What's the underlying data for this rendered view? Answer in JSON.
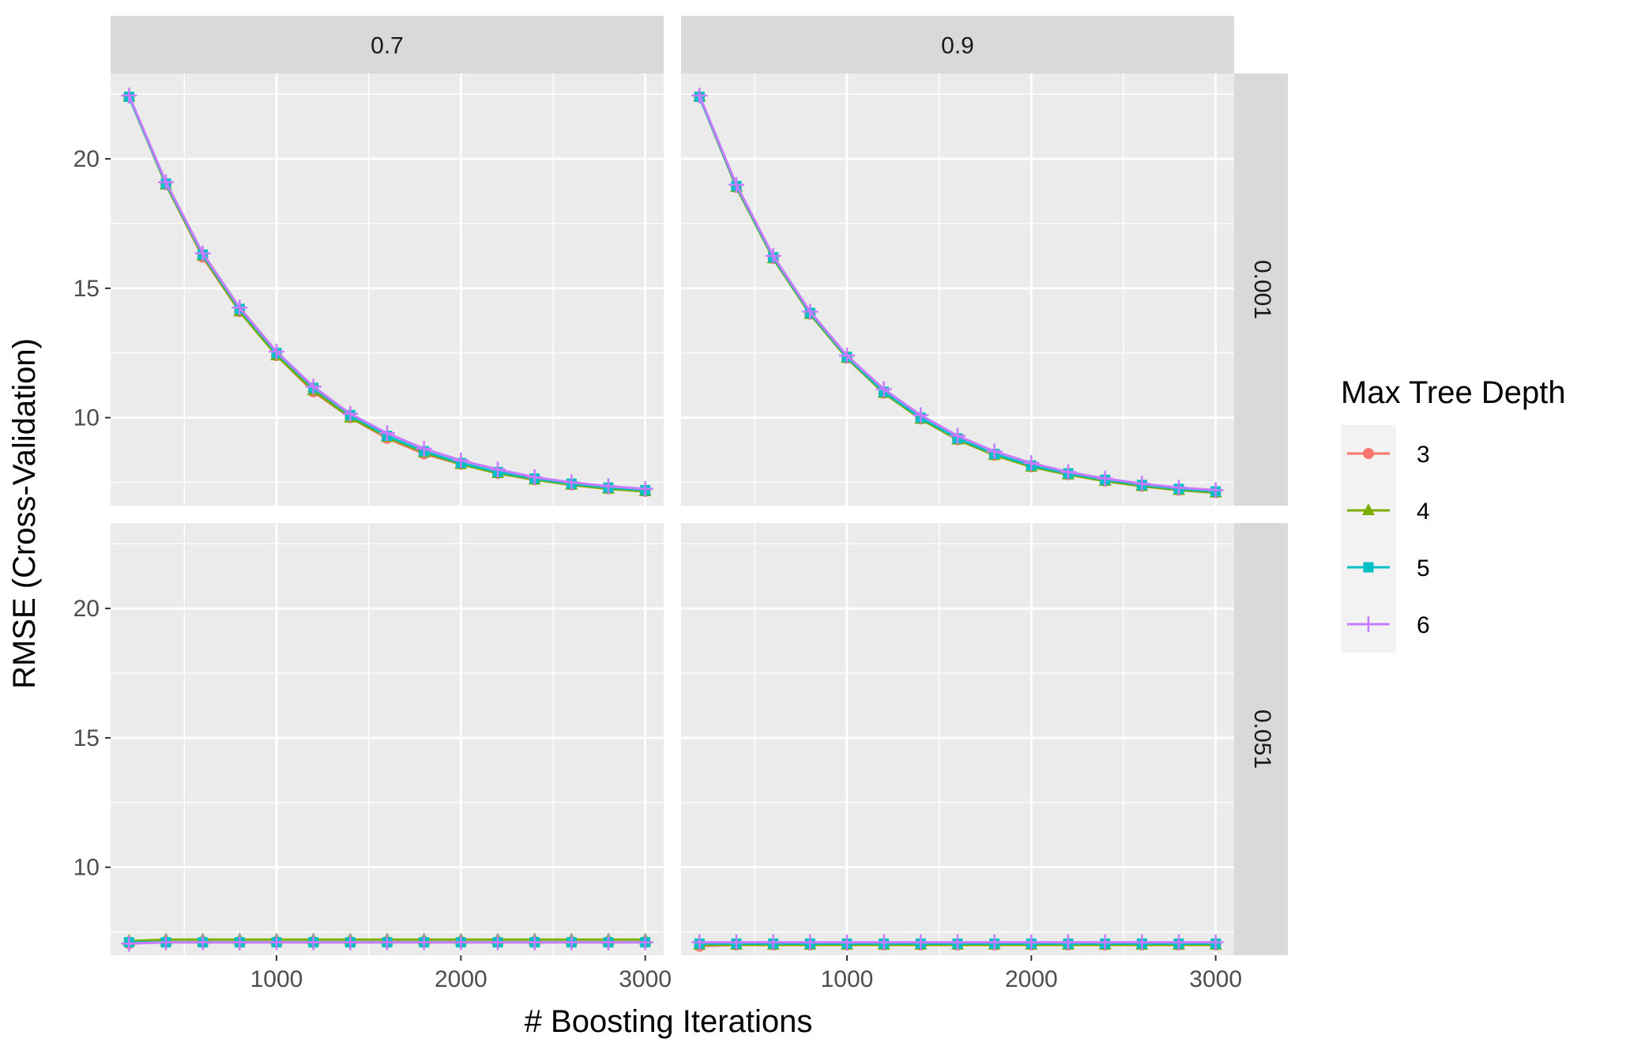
{
  "chart_data": {
    "type": "line",
    "xlabel": "# Boosting Iterations",
    "ylabel": "RMSE (Cross-Validation)",
    "xlim": [
      100,
      3100
    ],
    "ylim": [
      6.6,
      23.3
    ],
    "x_ticks": [
      1000,
      2000,
      3000
    ],
    "y_ticks": [
      10,
      15,
      20
    ],
    "grid": true,
    "legend": {
      "title": "Max Tree Depth",
      "placement": "right",
      "entries": [
        {
          "label": "3",
          "color": "#F8766D",
          "shape": "circle"
        },
        {
          "label": "4",
          "color": "#7CAE00",
          "shape": "triangle"
        },
        {
          "label": "5",
          "color": "#00BFC4",
          "shape": "square"
        },
        {
          "label": "6",
          "color": "#C77CFF",
          "shape": "plus"
        }
      ]
    },
    "facet_columns": [
      "0.7",
      "0.9"
    ],
    "facet_rows": [
      "0.001",
      "0.051"
    ],
    "x": [
      200,
      400,
      600,
      800,
      1000,
      1200,
      1400,
      1600,
      1800,
      2000,
      2200,
      2400,
      2600,
      2800,
      3000
    ],
    "panels": [
      {
        "column": "0.7",
        "row": "0.001",
        "series": [
          {
            "name": "3",
            "values": [
              22.4,
              19.0,
              16.2,
              14.1,
              12.4,
              11.0,
              10.0,
              9.2,
              8.6,
              8.2,
              7.85,
              7.6,
              7.4,
              7.25,
              7.15
            ]
          },
          {
            "name": "4",
            "values": [
              22.4,
              19.0,
              16.25,
              14.1,
              12.4,
              11.05,
              10.0,
              9.25,
              8.65,
              8.2,
              7.85,
              7.6,
              7.4,
              7.25,
              7.15
            ]
          },
          {
            "name": "5",
            "values": [
              22.4,
              19.05,
              16.3,
              14.2,
              12.5,
              11.15,
              10.1,
              9.3,
              8.7,
              8.25,
              7.9,
              7.65,
              7.45,
              7.3,
              7.2
            ]
          },
          {
            "name": "6",
            "values": [
              22.45,
              19.1,
              16.35,
              14.25,
              12.55,
              11.2,
              10.15,
              9.4,
              8.8,
              8.35,
              8.0,
              7.7,
              7.5,
              7.35,
              7.25
            ]
          }
        ]
      },
      {
        "column": "0.9",
        "row": "0.001",
        "series": [
          {
            "name": "3",
            "values": [
              22.4,
              18.9,
              16.15,
              14.0,
              12.3,
              10.95,
              9.95,
              9.15,
              8.55,
              8.1,
              7.8,
              7.55,
              7.35,
              7.2,
              7.1
            ]
          },
          {
            "name": "4",
            "values": [
              22.4,
              18.9,
              16.15,
              14.0,
              12.3,
              10.95,
              9.95,
              9.15,
              8.55,
              8.1,
              7.8,
              7.55,
              7.35,
              7.2,
              7.1
            ]
          },
          {
            "name": "5",
            "values": [
              22.4,
              18.95,
              16.2,
              14.05,
              12.35,
              11.0,
              10.0,
              9.2,
              8.6,
              8.15,
              7.85,
              7.6,
              7.4,
              7.25,
              7.15
            ]
          },
          {
            "name": "6",
            "values": [
              22.45,
              19.0,
              16.25,
              14.1,
              12.4,
              11.1,
              10.1,
              9.3,
              8.7,
              8.25,
              7.9,
              7.65,
              7.45,
              7.3,
              7.2
            ]
          }
        ]
      },
      {
        "column": "0.7",
        "row": "0.051",
        "series": [
          {
            "name": "3",
            "values": [
              7.05,
              7.1,
              7.1,
              7.1,
              7.1,
              7.1,
              7.1,
              7.1,
              7.1,
              7.1,
              7.1,
              7.1,
              7.1,
              7.1,
              7.1
            ]
          },
          {
            "name": "4",
            "values": [
              7.15,
              7.2,
              7.2,
              7.2,
              7.2,
              7.2,
              7.2,
              7.2,
              7.2,
              7.2,
              7.2,
              7.2,
              7.2,
              7.2,
              7.2
            ]
          },
          {
            "name": "5",
            "values": [
              7.1,
              7.1,
              7.1,
              7.1,
              7.1,
              7.1,
              7.1,
              7.1,
              7.1,
              7.1,
              7.1,
              7.1,
              7.1,
              7.1,
              7.1
            ]
          },
          {
            "name": "6",
            "values": [
              7.05,
              7.1,
              7.1,
              7.1,
              7.1,
              7.1,
              7.1,
              7.1,
              7.1,
              7.1,
              7.1,
              7.1,
              7.1,
              7.1,
              7.1
            ]
          }
        ]
      },
      {
        "column": "0.9",
        "row": "0.051",
        "series": [
          {
            "name": "3",
            "values": [
              6.95,
              7.0,
              7.0,
              7.0,
              7.0,
              7.0,
              7.0,
              7.0,
              7.0,
              7.0,
              7.0,
              7.0,
              7.0,
              7.0,
              7.0
            ]
          },
          {
            "name": "4",
            "values": [
              7.0,
              7.0,
              7.0,
              7.0,
              7.0,
              7.0,
              7.0,
              7.0,
              7.0,
              7.0,
              7.0,
              7.0,
              7.0,
              7.0,
              7.0
            ]
          },
          {
            "name": "5",
            "values": [
              7.05,
              7.05,
              7.05,
              7.05,
              7.05,
              7.05,
              7.05,
              7.05,
              7.05,
              7.05,
              7.05,
              7.05,
              7.05,
              7.05,
              7.05
            ]
          },
          {
            "name": "6",
            "values": [
              7.1,
              7.1,
              7.1,
              7.1,
              7.1,
              7.1,
              7.1,
              7.1,
              7.1,
              7.1,
              7.1,
              7.1,
              7.1,
              7.1,
              7.1
            ]
          }
        ]
      }
    ]
  }
}
